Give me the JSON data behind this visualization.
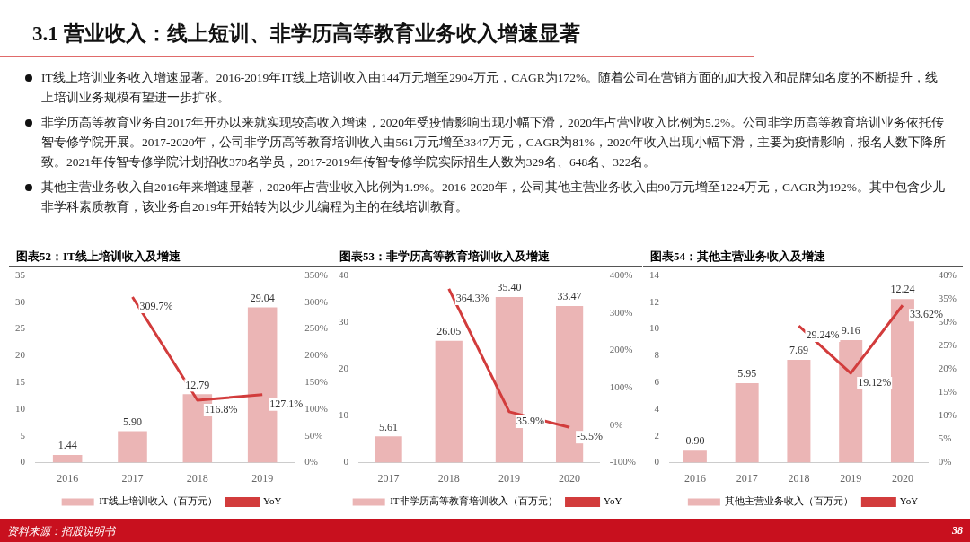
{
  "chart_data": [
    {
      "type": "other",
      "title": "3.1 营业收入：线上短训、非学历高等教育业务收入增速显著",
      "annotations": [
        "IT线上培训业务收入增速显著。2016-2019年IT线上培训收入由144万元增至2904万元，CAGR为172%。随着公司在营销方面的加大投入和品牌知名度的不断提升，线上培训业务规模有望进一步扩张。",
        "非学历高等教育业务自2017年开办以来就实现较高收入增速，2020年受疫情影响出现小幅下滑，2020年占营业收入比例为5.2%。公司非学历高等教育培训业务依托传智专修学院开展。2017-2020年，公司非学历高等教育培训收入由561万元增至3347万元，CAGR为81%，2020年收入出现小幅下滑，主要为疫情影响，报名人数下降所致。2021年传智专修学院计划招收370名学员，2017-2019年传智专修学院实际招生人数为329名、648名、322名。",
        "其他主营业务收入自2016年来增速显著，2020年占营业收入比例为1.9%。2016-2020年，公司其他主营业务收入由90万元增至1224万元，CAGR为192%。其中包含少儿非学科素质教育，该业务自2019年开始转为以少儿编程为主的在线培训教育。",
        "资料来源：招股说明书",
        "38"
      ]
    },
    {
      "type": "bar",
      "title": "图表52：IT线上培训收入及增速",
      "categories": [
        "2016",
        "2017",
        "2018",
        "2019"
      ],
      "legend": "bottom",
      "series": [
        {
          "name": "IT线上培训收入（百万元）",
          "color": "#ebb5b5",
          "values": [
            1.44,
            5.9,
            12.79,
            29.04
          ],
          "value_labels": [
            "1.44",
            "5.90",
            "12.79",
            "29.04"
          ]
        },
        {
          "name": "YoY",
          "type": "line",
          "axis": "y2",
          "color": "#d23c3c",
          "values": [
            null,
            309.7,
            116.8,
            127.1
          ],
          "value_labels": [
            null,
            "309.7%",
            "116.8%",
            "127.1%"
          ]
        }
      ],
      "ylim": [
        0,
        35
      ],
      "yticks": [
        0,
        5,
        10,
        15,
        20,
        25,
        30,
        35
      ],
      "y2lim": [
        0,
        350
      ],
      "y2ticks": [
        {
          "value": 0,
          "label": "0%"
        },
        {
          "value": 50,
          "label": "50%"
        },
        {
          "value": 100,
          "label": "100%"
        },
        {
          "value": 150,
          "label": "150%"
        },
        {
          "value": 200,
          "label": "200%"
        },
        {
          "value": 250,
          "label": "250%"
        },
        {
          "value": 300,
          "label": "300%"
        },
        {
          "value": 350,
          "label": "350%"
        }
      ]
    },
    {
      "type": "bar",
      "title": "图表53：非学历高等教育培训收入及增速",
      "categories": [
        "2017",
        "2018",
        "2019",
        "2020"
      ],
      "legend": "bottom",
      "series": [
        {
          "name": "IT非学历高等教育培训收入（百万元）",
          "color": "#ebb5b5",
          "values": [
            5.61,
            26.05,
            35.4,
            33.47
          ],
          "value_labels": [
            "5.61",
            "26.05",
            "35.40",
            "33.47"
          ]
        },
        {
          "name": "YoY",
          "type": "line",
          "axis": "y2",
          "color": "#d23c3c",
          "values": [
            null,
            364.3,
            35.9,
            -5.5
          ],
          "value_labels": [
            null,
            "364.3%",
            "35.9%",
            "-5.5%"
          ]
        }
      ],
      "ylim": [
        0,
        40
      ],
      "yticks": [
        0,
        10,
        20,
        30,
        40
      ],
      "y2lim": [
        -100,
        400
      ],
      "y2ticks": [
        {
          "value": -100,
          "label": "-100%"
        },
        {
          "value": 0,
          "label": "0%"
        },
        {
          "value": 100,
          "label": "100%"
        },
        {
          "value": 200,
          "label": "200%"
        },
        {
          "value": 300,
          "label": "300%"
        },
        {
          "value": 400,
          "label": "400%"
        }
      ]
    },
    {
      "type": "bar",
      "title": "图表54：其他主营业务收入及增速",
      "categories": [
        "2016",
        "2017",
        "2018",
        "2019",
        "2020"
      ],
      "legend": "bottom",
      "series": [
        {
          "name": "其他主营业务收入（百万元）",
          "color": "#ebb5b5",
          "values": [
            0.9,
            5.95,
            7.69,
            9.16,
            12.24
          ],
          "value_labels": [
            "0.90",
            "5.95",
            "7.69",
            "9.16",
            "12.24"
          ]
        },
        {
          "name": "YoY",
          "type": "line",
          "axis": "y2",
          "color": "#d23c3c",
          "values": [
            null,
            null,
            29.24,
            19.12,
            33.62
          ],
          "value_labels": [
            null,
            null,
            "29.24%",
            "19.12%",
            "33.62%"
          ]
        }
      ],
      "ylim": [
        0,
        14
      ],
      "yticks": [
        0,
        2,
        4,
        6,
        8,
        10,
        12,
        14
      ],
      "y2lim": [
        0,
        40
      ],
      "y2ticks": [
        {
          "value": 0,
          "label": "0%"
        },
        {
          "value": 5,
          "label": "5%"
        },
        {
          "value": 10,
          "label": "10%"
        },
        {
          "value": 15,
          "label": "15%"
        },
        {
          "value": 20,
          "label": "20%"
        },
        {
          "value": 25,
          "label": "25%"
        },
        {
          "value": 30,
          "label": "30%"
        },
        {
          "value": 35,
          "label": "35%"
        },
        {
          "value": 40,
          "label": "40%"
        }
      ]
    }
  ]
}
